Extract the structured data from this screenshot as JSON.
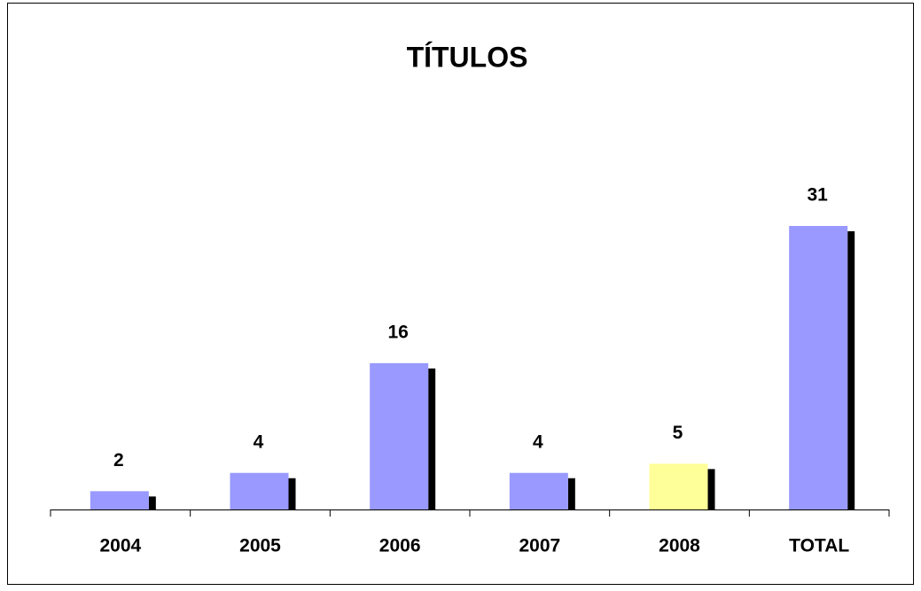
{
  "chart_data": {
    "type": "bar",
    "title": "TÍTULOS",
    "categories": [
      "2004",
      "2005",
      "2006",
      "2007",
      "2008",
      "TOTAL"
    ],
    "values": [
      2,
      4,
      16,
      4,
      5,
      31
    ],
    "colors": [
      "#9999ff",
      "#9999ff",
      "#9999ff",
      "#9999ff",
      "#ffff99",
      "#9999ff"
    ]
  }
}
